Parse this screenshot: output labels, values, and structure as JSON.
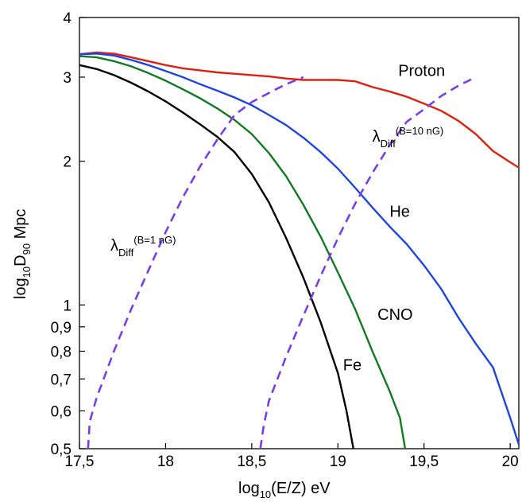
{
  "chart_data": {
    "type": "line",
    "xlabel": {
      "prefix": "log",
      "sub": "10",
      "suffix": "(E/Z) eV"
    },
    "ylabel": {
      "prefix": "log",
      "sub": "10",
      "mid": "D",
      "sub2": "90",
      "suffix": " Mpc"
    },
    "x_ticks": [
      {
        "value": 17.5,
        "label": "17,5"
      },
      {
        "value": 18,
        "label": "18"
      },
      {
        "value": 18.5,
        "label": "18,5"
      },
      {
        "value": 19,
        "label": "19"
      },
      {
        "value": 19.5,
        "label": "19,5"
      },
      {
        "value": 20,
        "label": "20"
      }
    ],
    "y_ticks": [
      {
        "value": 0.5,
        "label": "0,5"
      },
      {
        "value": 0.6,
        "label": "0,6"
      },
      {
        "value": 0.7,
        "label": "0,7"
      },
      {
        "value": 0.8,
        "label": "0,8"
      },
      {
        "value": 0.9,
        "label": "0,9"
      },
      {
        "value": 1,
        "label": "1"
      },
      {
        "value": 2,
        "label": "2"
      },
      {
        "value": 3,
        "label": "3"
      },
      {
        "value": 4,
        "label": "4"
      }
    ],
    "xlim": [
      17.5,
      20.05
    ],
    "ylim": [
      0.5,
      4
    ],
    "y_scale": "log",
    "grid": false,
    "series": [
      {
        "name": "Proton",
        "color": "#e0200f",
        "dash": false,
        "points": [
          [
            17.5,
            3.35
          ],
          [
            17.6,
            3.38
          ],
          [
            17.7,
            3.36
          ],
          [
            17.8,
            3.3
          ],
          [
            17.9,
            3.24
          ],
          [
            18.0,
            3.18
          ],
          [
            18.1,
            3.13
          ],
          [
            18.2,
            3.1
          ],
          [
            18.3,
            3.07
          ],
          [
            18.4,
            3.05
          ],
          [
            18.5,
            3.03
          ],
          [
            18.6,
            3.01
          ],
          [
            18.7,
            2.98
          ],
          [
            18.8,
            2.96
          ],
          [
            18.9,
            2.96
          ],
          [
            19.0,
            2.96
          ],
          [
            19.1,
            2.94
          ],
          [
            19.2,
            2.86
          ],
          [
            19.3,
            2.8
          ],
          [
            19.4,
            2.73
          ],
          [
            19.5,
            2.64
          ],
          [
            19.6,
            2.55
          ],
          [
            19.7,
            2.43
          ],
          [
            19.8,
            2.28
          ],
          [
            19.9,
            2.1
          ],
          [
            20.0,
            1.99
          ],
          [
            20.05,
            1.94
          ]
        ]
      },
      {
        "name": "He",
        "color": "#1f45e0",
        "dash": false,
        "points": [
          [
            17.5,
            3.35
          ],
          [
            17.6,
            3.36
          ],
          [
            17.7,
            3.33
          ],
          [
            17.8,
            3.26
          ],
          [
            17.9,
            3.18
          ],
          [
            18.0,
            3.09
          ],
          [
            18.1,
            3.0
          ],
          [
            18.2,
            2.9
          ],
          [
            18.3,
            2.81
          ],
          [
            18.4,
            2.72
          ],
          [
            18.5,
            2.62
          ],
          [
            18.6,
            2.5
          ],
          [
            18.7,
            2.38
          ],
          [
            18.8,
            2.24
          ],
          [
            18.9,
            2.09
          ],
          [
            19.0,
            1.93
          ],
          [
            19.1,
            1.76
          ],
          [
            19.2,
            1.6
          ],
          [
            19.3,
            1.46
          ],
          [
            19.4,
            1.34
          ],
          [
            19.5,
            1.21
          ],
          [
            19.6,
            1.08
          ],
          [
            19.7,
            0.94
          ],
          [
            19.8,
            0.83
          ],
          [
            19.9,
            0.74
          ],
          [
            20.0,
            0.58
          ],
          [
            20.05,
            0.51
          ]
        ]
      },
      {
        "name": "CNO",
        "color": "#127a23",
        "dash": false,
        "points": [
          [
            17.5,
            3.32
          ],
          [
            17.6,
            3.3
          ],
          [
            17.7,
            3.24
          ],
          [
            17.8,
            3.16
          ],
          [
            17.9,
            3.06
          ],
          [
            18.0,
            2.95
          ],
          [
            18.1,
            2.83
          ],
          [
            18.2,
            2.71
          ],
          [
            18.3,
            2.58
          ],
          [
            18.4,
            2.44
          ],
          [
            18.5,
            2.28
          ],
          [
            18.6,
            2.08
          ],
          [
            18.7,
            1.86
          ],
          [
            18.8,
            1.62
          ],
          [
            18.9,
            1.39
          ],
          [
            19.0,
            1.17
          ],
          [
            19.1,
            0.98
          ],
          [
            19.2,
            0.8
          ],
          [
            19.3,
            0.66
          ],
          [
            19.36,
            0.58
          ],
          [
            19.39,
            0.5
          ]
        ]
      },
      {
        "name": "Fe",
        "color": "#000000",
        "dash": false,
        "points": [
          [
            17.5,
            3.18
          ],
          [
            17.6,
            3.12
          ],
          [
            17.7,
            3.03
          ],
          [
            17.8,
            2.92
          ],
          [
            17.9,
            2.8
          ],
          [
            18.0,
            2.67
          ],
          [
            18.1,
            2.53
          ],
          [
            18.2,
            2.39
          ],
          [
            18.3,
            2.25
          ],
          [
            18.4,
            2.09
          ],
          [
            18.5,
            1.88
          ],
          [
            18.6,
            1.64
          ],
          [
            18.7,
            1.38
          ],
          [
            18.8,
            1.14
          ],
          [
            18.9,
            0.92
          ],
          [
            19.0,
            0.72
          ],
          [
            19.05,
            0.6
          ],
          [
            19.09,
            0.5
          ]
        ]
      },
      {
        "name": "λDiff (B=1 nG)",
        "color": "#7a3ee8",
        "dash": true,
        "points": [
          [
            17.55,
            0.5
          ],
          [
            17.56,
            0.57
          ],
          [
            17.6,
            0.64
          ],
          [
            17.7,
            0.8
          ],
          [
            17.8,
            0.98
          ],
          [
            17.9,
            1.18
          ],
          [
            18.0,
            1.42
          ],
          [
            18.1,
            1.68
          ],
          [
            18.2,
            1.95
          ],
          [
            18.3,
            2.22
          ],
          [
            18.4,
            2.5
          ],
          [
            18.5,
            2.66
          ],
          [
            18.6,
            2.78
          ],
          [
            18.7,
            2.9
          ],
          [
            18.8,
            3.0
          ]
        ]
      },
      {
        "name": "λDiff (B=10 nG)",
        "color": "#7a3ee8",
        "dash": true,
        "points": [
          [
            18.55,
            0.5
          ],
          [
            18.57,
            0.56
          ],
          [
            18.6,
            0.63
          ],
          [
            18.7,
            0.78
          ],
          [
            18.8,
            0.95
          ],
          [
            18.9,
            1.15
          ],
          [
            19.0,
            1.38
          ],
          [
            19.1,
            1.63
          ],
          [
            19.2,
            1.89
          ],
          [
            19.3,
            2.16
          ],
          [
            19.4,
            2.42
          ],
          [
            19.5,
            2.57
          ],
          [
            19.6,
            2.74
          ],
          [
            19.7,
            2.88
          ],
          [
            19.8,
            3.0
          ]
        ]
      }
    ],
    "labels": [
      {
        "text": "Proton",
        "x": 19.35,
        "y": 3.02
      },
      {
        "text": "He",
        "x": 19.3,
        "y": 1.53
      },
      {
        "text": "CNO",
        "x": 19.23,
        "y": 0.93
      },
      {
        "text": "Fe",
        "x": 19.03,
        "y": 0.73
      }
    ],
    "lambda_labels": [
      {
        "symbol": "λ",
        "sub": "Diff",
        "sup": "(B=10 nG)",
        "x": 19.2,
        "y": 2.2
      },
      {
        "symbol": "λ",
        "sub": "Diff",
        "sup": "(B=1 nG)",
        "x": 17.68,
        "y": 1.3
      }
    ]
  }
}
